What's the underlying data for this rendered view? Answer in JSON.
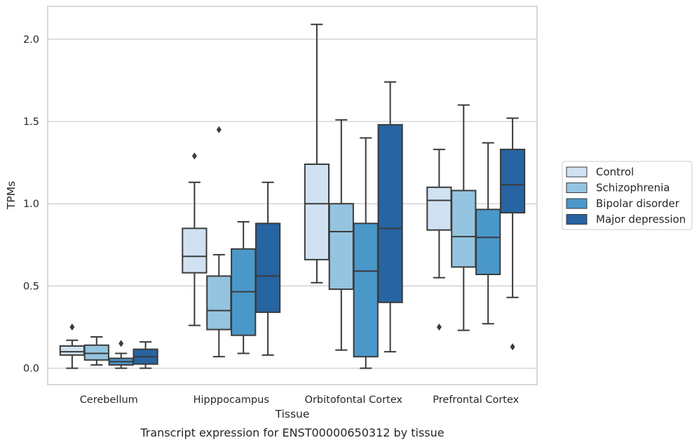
{
  "chart_data": {
    "type": "box",
    "xlabel": "Tissue",
    "ylabel": "TPMs",
    "caption": "Transcript expression for ENST00000650312 by tissue",
    "ylim": [
      -0.1,
      2.2
    ],
    "yticks": [
      "0.0",
      "0.5",
      "1.0",
      "1.5",
      "2.0"
    ],
    "grid": "horizontal",
    "legend_position": "right",
    "categories": [
      "Cerebellum",
      "Hipppocampus",
      "Orbitofontal Cortex",
      "Prefrontal Cortex"
    ],
    "series": [
      {
        "name": "Control",
        "color": "#d0e1f2",
        "boxes": [
          {
            "min": 0.0,
            "q1": 0.08,
            "median": 0.1,
            "q3": 0.135,
            "max": 0.17,
            "outliers": [
              0.25
            ]
          },
          {
            "min": 0.26,
            "q1": 0.58,
            "median": 0.68,
            "q3": 0.85,
            "max": 1.13,
            "outliers": [
              1.29
            ]
          },
          {
            "min": 0.52,
            "q1": 0.66,
            "median": 1.0,
            "q3": 1.24,
            "max": 2.09,
            "outliers": []
          },
          {
            "min": 0.55,
            "q1": 0.84,
            "median": 1.02,
            "q3": 1.1,
            "max": 1.33,
            "outliers": [
              0.25
            ]
          }
        ]
      },
      {
        "name": "Schizophrenia",
        "color": "#94c4df",
        "boxes": [
          {
            "min": 0.02,
            "q1": 0.05,
            "median": 0.09,
            "q3": 0.14,
            "max": 0.19,
            "outliers": []
          },
          {
            "min": 0.07,
            "q1": 0.235,
            "median": 0.35,
            "q3": 0.56,
            "max": 0.69,
            "outliers": [
              1.45
            ]
          },
          {
            "min": 0.11,
            "q1": 0.48,
            "median": 0.83,
            "q3": 1.0,
            "max": 1.51,
            "outliers": []
          },
          {
            "min": 0.23,
            "q1": 0.615,
            "median": 0.8,
            "q3": 1.08,
            "max": 1.6,
            "outliers": []
          }
        ]
      },
      {
        "name": "Bipolar disorder",
        "color": "#4a98c9",
        "boxes": [
          {
            "min": 0.0,
            "q1": 0.02,
            "median": 0.04,
            "q3": 0.06,
            "max": 0.09,
            "outliers": [
              0.15
            ]
          },
          {
            "min": 0.09,
            "q1": 0.2,
            "median": 0.465,
            "q3": 0.725,
            "max": 0.89,
            "outliers": []
          },
          {
            "min": 0.0,
            "q1": 0.07,
            "median": 0.59,
            "q3": 0.88,
            "max": 1.4,
            "outliers": []
          },
          {
            "min": 0.27,
            "q1": 0.57,
            "median": 0.795,
            "q3": 0.965,
            "max": 1.37,
            "outliers": []
          }
        ]
      },
      {
        "name": "Major depression",
        "color": "#2764a2",
        "boxes": [
          {
            "min": 0.0,
            "q1": 0.025,
            "median": 0.07,
            "q3": 0.115,
            "max": 0.16,
            "outliers": []
          },
          {
            "min": 0.08,
            "q1": 0.34,
            "median": 0.56,
            "q3": 0.88,
            "max": 1.13,
            "outliers": []
          },
          {
            "min": 0.1,
            "q1": 0.4,
            "median": 0.85,
            "q3": 1.48,
            "max": 1.74,
            "outliers": []
          },
          {
            "min": 0.43,
            "q1": 0.945,
            "median": 1.115,
            "q3": 1.33,
            "max": 1.52,
            "outliers": [
              0.13
            ]
          }
        ]
      }
    ]
  }
}
